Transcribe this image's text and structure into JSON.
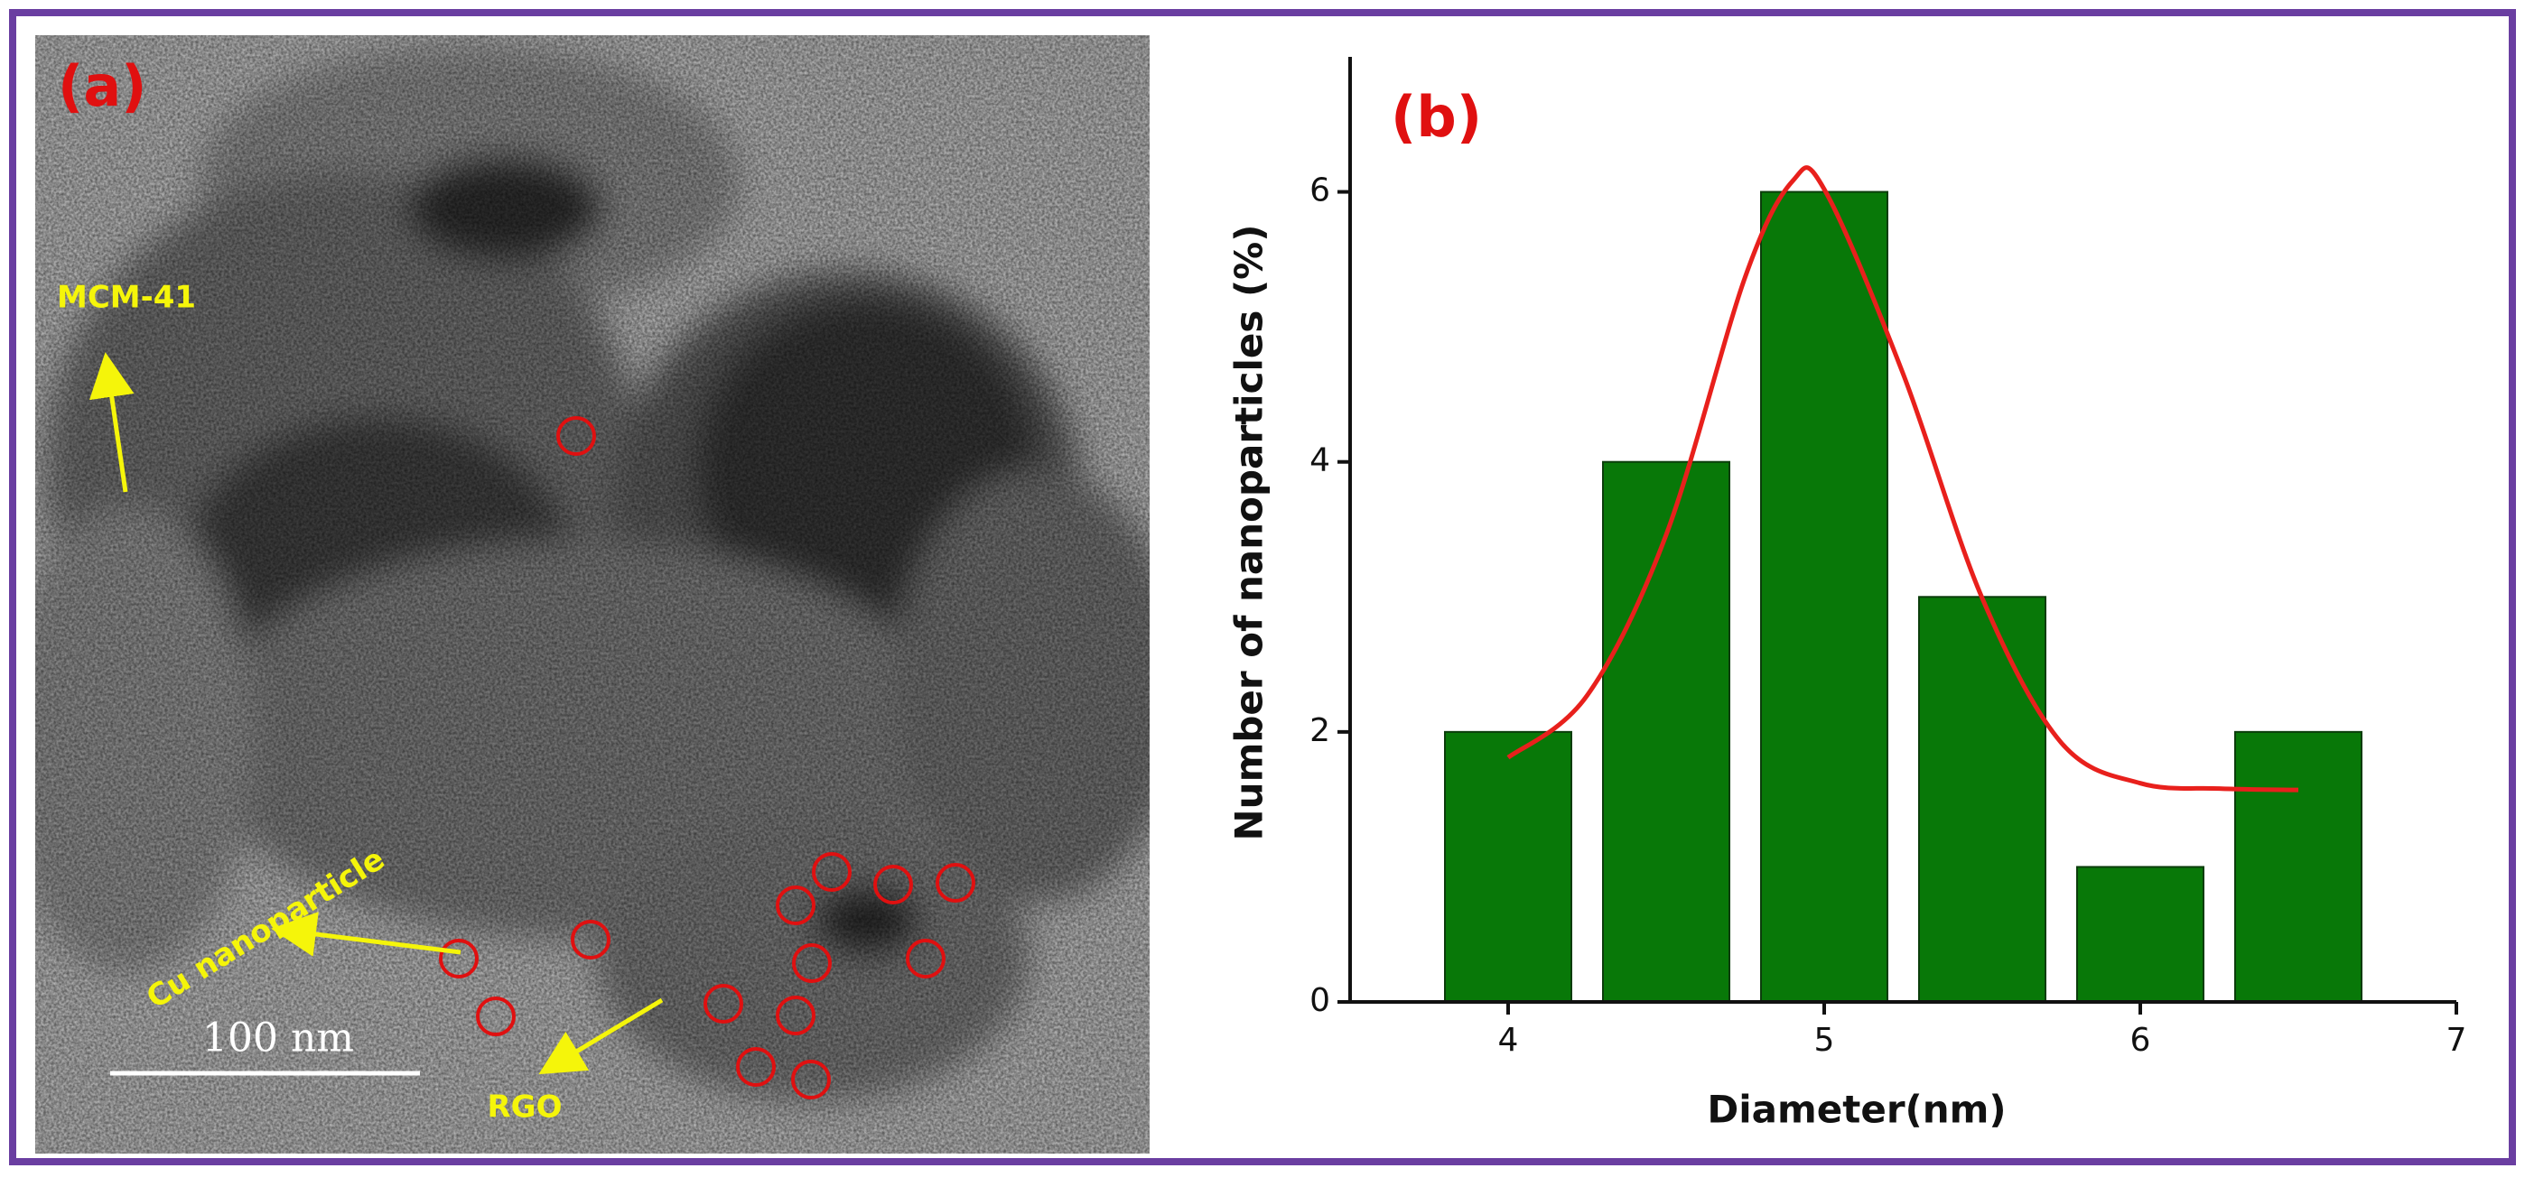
{
  "image_panel": {
    "label": "(a)",
    "annotations": [
      "MCM-41",
      "Cu nanoparticle",
      "RGO"
    ],
    "scale_bar": "100 nm"
  },
  "chart_data": {
    "type": "bar",
    "label": "(b)",
    "x_label": "Diameter(nm)",
    "y_label": "Number of nanoparticles (%)",
    "x": [
      4,
      4.5,
      5,
      5.5,
      6,
      6.5
    ],
    "values": [
      2,
      4,
      6,
      3,
      1,
      2
    ],
    "color": "#087808",
    "xlim": [
      3.5,
      7
    ],
    "xticks": [
      4,
      5,
      6,
      7
    ],
    "ylim": [
      0,
      7
    ],
    "yticks": [
      0,
      2,
      4,
      6
    ],
    "fit": {
      "type": "line",
      "color": "#e8201c",
      "x": [
        4,
        4.25,
        4.5,
        4.75,
        4.9,
        5,
        5.25,
        5.5,
        5.75,
        6,
        6.25,
        6.5
      ],
      "values": [
        1.81,
        2.27,
        3.46,
        5.37,
        6.08,
        6.02,
        4.65,
        2.99,
        1.92,
        1.62,
        1.58,
        1.57
      ]
    }
  }
}
